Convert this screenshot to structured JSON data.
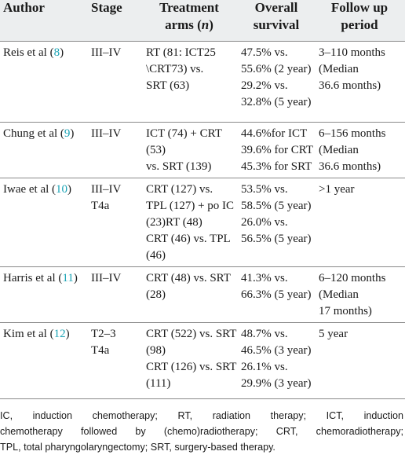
{
  "table": {
    "headers": {
      "author": "Author",
      "stage": "Stage",
      "treatment_line1": "Treatment",
      "treatment_line2": "arms (n)",
      "survival_line1": "Overall",
      "survival_line2": "survival",
      "followup_line1": "Follow up",
      "followup_line2": "period"
    },
    "rows": [
      {
        "author_name": "Reis et al (",
        "author_ref": "8",
        "author_close": ")",
        "stage": [
          "III–IV"
        ],
        "treatment": [
          "RT (81: ICT25",
          "\\CRT73) vs.",
          "SRT (63)"
        ],
        "survival": [
          "47.5% vs.",
          "55.6% (2 year)",
          "29.2% vs.",
          "32.8% (5 year)"
        ],
        "followup": [
          "3–110 months",
          "(Median",
          "36.6 months)"
        ]
      },
      {
        "author_name": "Chung et al (",
        "author_ref": "9",
        "author_close": ")",
        "stage": [
          "III–IV"
        ],
        "treatment": [
          "ICT (74) + CRT",
          "(53)",
          "vs. SRT (139)"
        ],
        "survival": [
          "44.6%for ICT",
          "39.6% for CRT",
          "45.3% for SRT"
        ],
        "followup": [
          "6–156 months",
          "(Median",
          "36.6 months)"
        ]
      },
      {
        "author_name": "Iwae et al (",
        "author_ref": "10",
        "author_close": ")",
        "stage": [
          "III–IV",
          "T4a"
        ],
        "treatment": [
          "CRT (127) vs.",
          "TPL (127) + po IC",
          "(23)RT (48)",
          "CRT (46) vs. TPL",
          "(46)"
        ],
        "survival": [
          "53.5% vs.",
          "58.5% (5 year)",
          "26.0% vs.",
          "56.5% (5 year)"
        ],
        "followup": [
          ">1 year"
        ]
      },
      {
        "author_name": "Harris et al (",
        "author_ref": "11",
        "author_close": ")",
        "stage": [
          "III–IV"
        ],
        "treatment": [
          "CRT (48) vs. SRT",
          "(28)"
        ],
        "survival": [
          "41.3% vs.",
          "66.3% (5 year)"
        ],
        "followup": [
          "6–120 months",
          "(Median",
          "17 months)"
        ]
      },
      {
        "author_name": "Kim et al (",
        "author_ref": "12",
        "author_close": ")",
        "stage": [
          "T2–3",
          "T4a"
        ],
        "treatment": [
          "CRT (522) vs. SRT",
          "(98)",
          "CRT (126) vs. SRT",
          "(111)"
        ],
        "survival": [
          "48.7% vs.",
          "46.5% (3 year)",
          "26.1% vs.",
          "29.9% (3 year)"
        ],
        "followup": [
          "5 year"
        ]
      }
    ]
  },
  "footnote": [
    "IC, induction chemotherapy; RT, radiation therapy; ICT, induction",
    "chemotherapy followed by (chemo)radiotherapy; CRT, chemoradiotherapy;",
    "TPL, total pharyngolaryngectomy; SRT, surgery-based therapy."
  ],
  "colors": {
    "header_bg": "#eceeef",
    "citation": "#1aa3b5",
    "rule": "#8a8a8a"
  }
}
